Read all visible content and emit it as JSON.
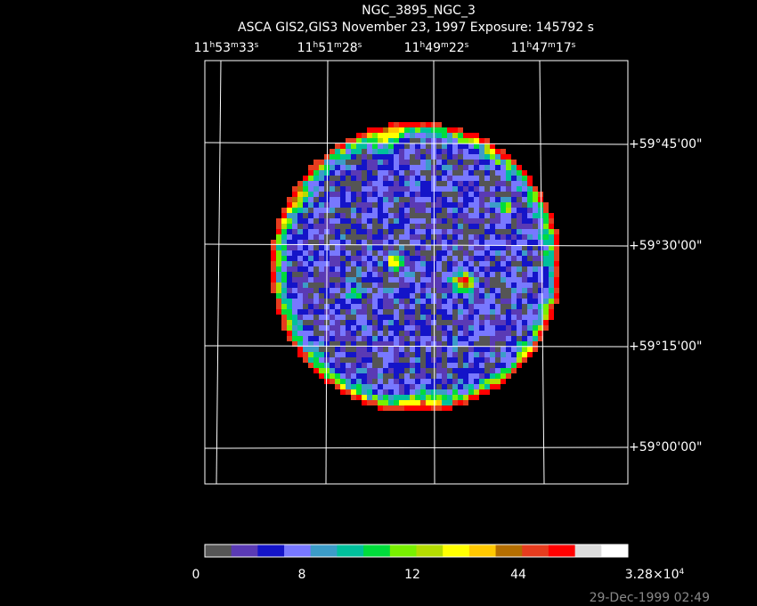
{
  "header": {
    "title": "NGC_3895_NGC_3",
    "subtitle": "ASCA GIS2,GIS3 November 23, 1997 Exposure: 145792 s"
  },
  "ra_labels": [
    [
      "11",
      "h",
      "53",
      "m",
      "33",
      "s"
    ],
    [
      "11",
      "h",
      "51",
      "m",
      "28",
      "s"
    ],
    [
      "11",
      "h",
      "49",
      "m",
      "22",
      "s"
    ],
    [
      "11",
      "h",
      "47",
      "m",
      "17",
      "s"
    ]
  ],
  "dec_labels": [
    "+59°45'00\"",
    "+59°30'00\"",
    "+59°15'00\"",
    "+59°00'00\""
  ],
  "colorbar": {
    "colors": [
      "#555555",
      "#5a3ab4",
      "#1414c8",
      "#7878ff",
      "#3c9cc8",
      "#00c09c",
      "#00dc3c",
      "#78f000",
      "#b4dc00",
      "#ffff00",
      "#ffc800",
      "#b46e00",
      "#e63c1e",
      "#ff0000",
      "#dcdcdc",
      "#ffffff"
    ],
    "labels": [
      [
        "0"
      ],
      [
        "8"
      ],
      [
        "12"
      ],
      [
        "44"
      ],
      [
        "3.28×10",
        "4"
      ]
    ]
  },
  "timestamp": "29-Dec-1999 02:49"
}
